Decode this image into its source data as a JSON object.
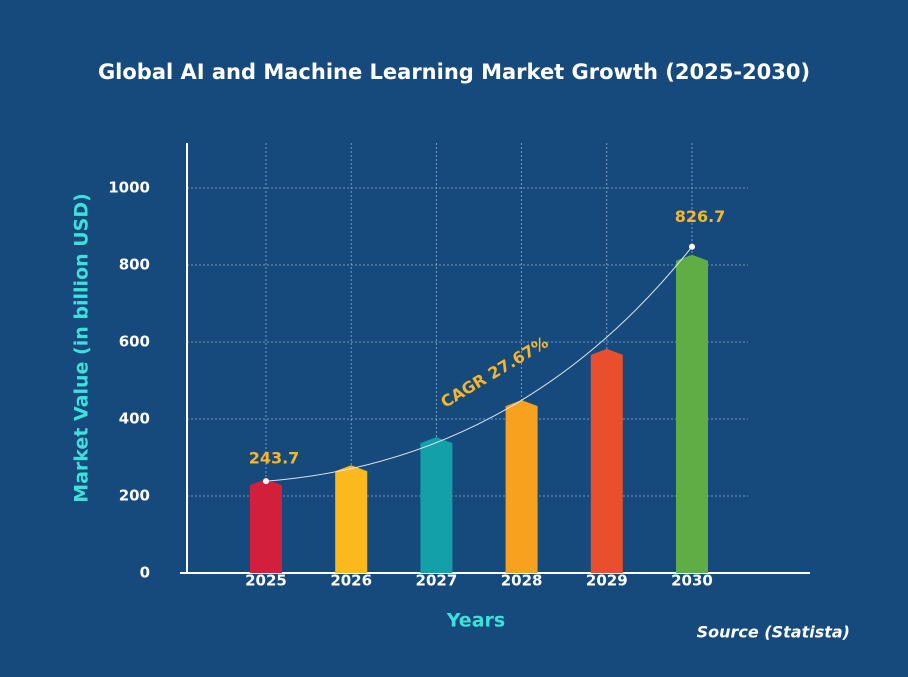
{
  "chart_data": {
    "type": "bar",
    "title": "Global AI and Machine Learning Market Growth (2025-2030)",
    "x_label": "Years",
    "y_label": "Market Value (in billion USD)",
    "annotation": "CAGR 27.67%",
    "source": "Source (Statista)",
    "categories": [
      "2025",
      "2026",
      "2027",
      "2028",
      "2029",
      "2030"
    ],
    "values": [
      243.7,
      280,
      353,
      449,
      582,
      826.7
    ],
    "colors": [
      "#d21f3c",
      "#fbb91e",
      "#13a0a8",
      "#f7a11f",
      "#e8502d",
      "#5fad44"
    ],
    "ylim": [
      0,
      1115
    ],
    "yticks": [
      0,
      200,
      400,
      600,
      800,
      1000
    ],
    "grid": true
  }
}
